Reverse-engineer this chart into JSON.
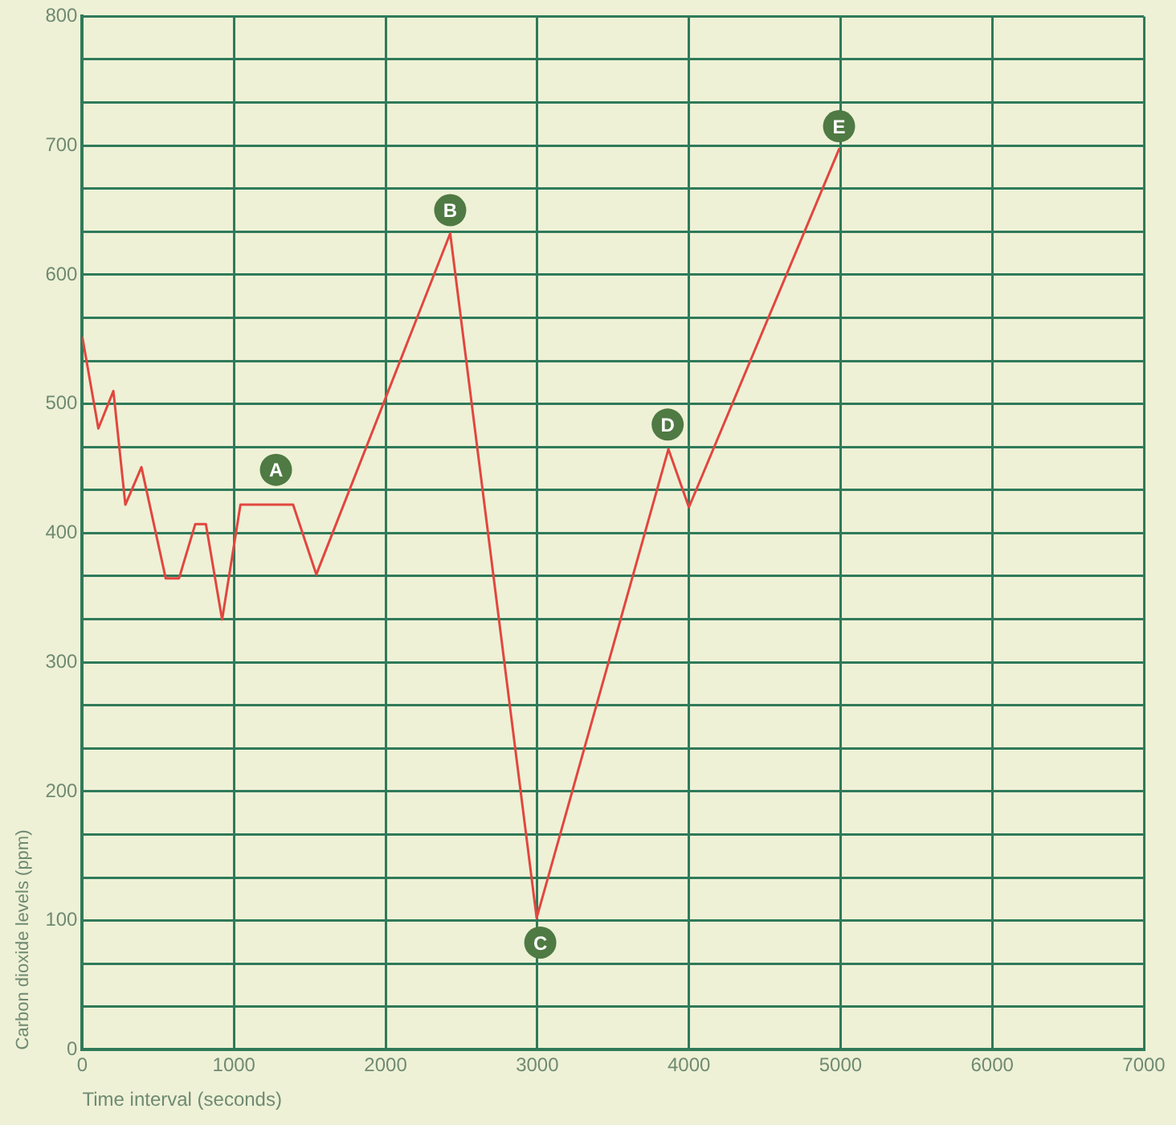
{
  "chart_data": {
    "type": "line",
    "xlabel": "Time interval (seconds)",
    "ylabel": "Carbon dioxide levels (ppm)",
    "x": [
      0,
      106,
      205,
      284,
      390,
      550,
      638,
      745,
      815,
      922,
      1043,
      1390,
      1543,
      2426,
      2996,
      3865,
      4000,
      4993
    ],
    "series": [
      {
        "color": "#e2463f",
        "values": [
          552,
          481,
          510,
          422,
          451,
          365,
          365,
          407,
          407,
          333,
          422,
          422,
          368,
          632,
          102,
          465,
          420,
          698
        ]
      }
    ],
    "xlim": [
      0,
      7000
    ],
    "xticks": [
      0,
      1000,
      2000,
      3000,
      4000,
      5000,
      6000,
      7000
    ],
    "ylim": [
      0,
      800
    ],
    "yticks": [
      0,
      {
        "value": 33.33,
        "label": null
      },
      {
        "value": 66.67,
        "label": null
      },
      100,
      {
        "value": 133.33,
        "label": null
      },
      {
        "value": 166.67,
        "label": null
      },
      200,
      {
        "value": 233.33,
        "label": null
      },
      {
        "value": 266.67,
        "label": null
      },
      300,
      {
        "value": 333.33,
        "label": null
      },
      {
        "value": 366.67,
        "label": null
      },
      400,
      {
        "value": 433.33,
        "label": null
      },
      {
        "value": 466.67,
        "label": null
      },
      500,
      {
        "value": 533.33,
        "label": null
      },
      {
        "value": 566.67,
        "label": null
      },
      600,
      {
        "value": 633.33,
        "label": null
      },
      {
        "value": 666.67,
        "label": null
      },
      700,
      {
        "value": 733.33,
        "label": null
      },
      {
        "value": 766.67,
        "label": null
      },
      800
    ],
    "annotations": [
      {
        "text": "A",
        "x": 1277,
        "y": 449
      },
      {
        "text": "B",
        "x": 2426,
        "y": 650
      },
      {
        "text": "C",
        "x": 3020,
        "y": 83
      },
      {
        "text": "D",
        "x": 3860,
        "y": 484
      },
      {
        "text": "E",
        "x": 4990,
        "y": 715
      }
    ],
    "grid": true,
    "legend": false,
    "marker": "none",
    "line_style": "solid"
  }
}
